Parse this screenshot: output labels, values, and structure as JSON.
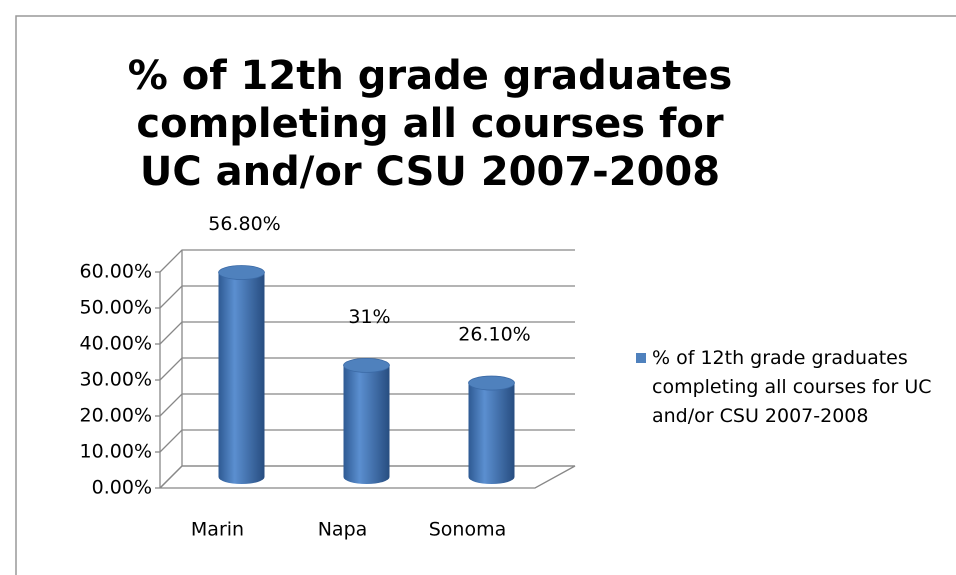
{
  "chart_data": {
    "type": "bar",
    "title": "% of 12th grade graduates completing all courses for UC and/or CSU 2007-2008",
    "categories": [
      "Marin",
      "Napa",
      "Sonoma"
    ],
    "series": [
      {
        "name": "% of 12th grade graduates completing all courses for UC and/or CSU 2007-2008",
        "color": "#4f81bd",
        "values": [
          56.8,
          31,
          26.1
        ],
        "value_labels": [
          "56.80%",
          "31%",
          "26.10%"
        ]
      }
    ],
    "ylim": [
      0,
      60
    ],
    "yticks": [
      {
        "value": 0,
        "label": "0.00%"
      },
      {
        "value": 10,
        "label": "10.00%"
      },
      {
        "value": 20,
        "label": "20.00%"
      },
      {
        "value": 30,
        "label": "30.00%"
      },
      {
        "value": 40,
        "label": "40.00%"
      },
      {
        "value": 50,
        "label": "50.00%"
      },
      {
        "value": 60,
        "label": "60.00%"
      }
    ],
    "grid": true
  }
}
